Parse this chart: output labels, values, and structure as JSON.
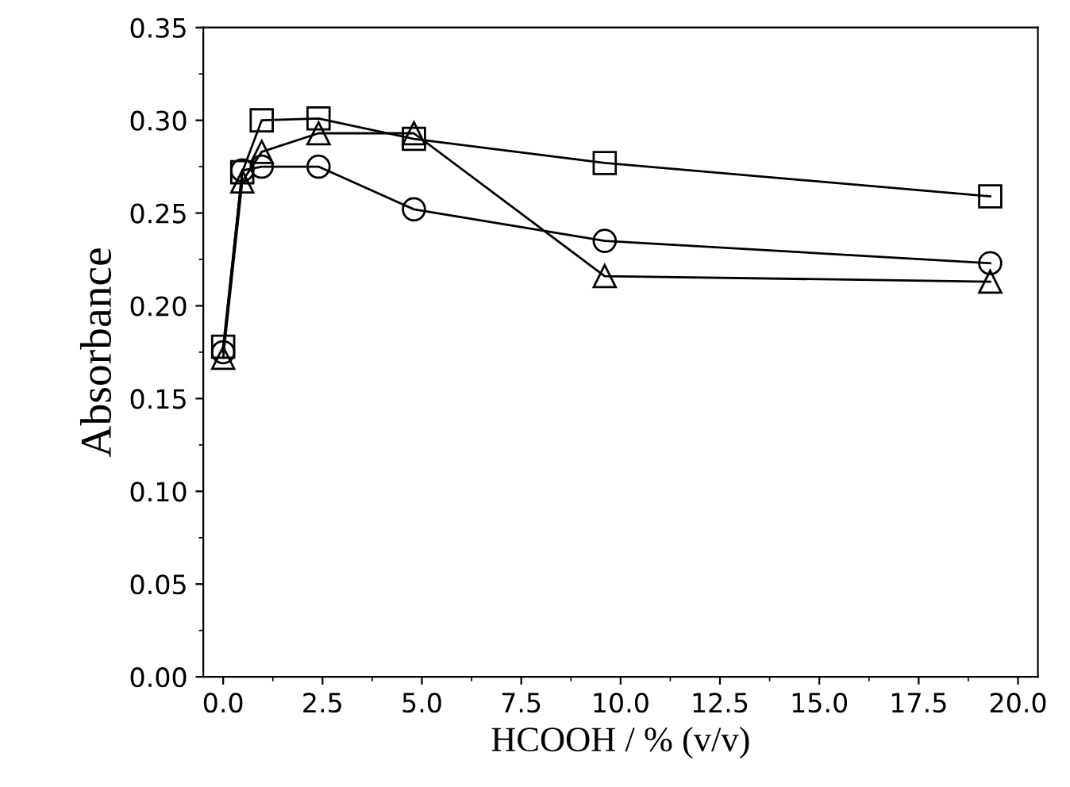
{
  "chart_data": {
    "type": "line",
    "xlabel": "HCOOH / % (v/v)",
    "ylabel": "Absorbance",
    "xlim": [
      -0.5,
      20.5
    ],
    "ylim": [
      0,
      0.35
    ],
    "xticks": [
      {
        "value": 0,
        "label": "0.0"
      },
      {
        "value": 2.5,
        "label": "2.5"
      },
      {
        "value": 5,
        "label": "5.0"
      },
      {
        "value": 7.5,
        "label": "7.5"
      },
      {
        "value": 10,
        "label": "10.0"
      },
      {
        "value": 12.5,
        "label": "12.5"
      },
      {
        "value": 15,
        "label": "15.0"
      },
      {
        "value": 17.5,
        "label": "17.5"
      },
      {
        "value": 20,
        "label": "20.0"
      }
    ],
    "yticks": [
      {
        "value": 0,
        "label": "0.00"
      },
      {
        "value": 0.05,
        "label": "0.05"
      },
      {
        "value": 0.1,
        "label": "0.10"
      },
      {
        "value": 0.15,
        "label": "0.15"
      },
      {
        "value": 0.2,
        "label": "0.20"
      },
      {
        "value": 0.25,
        "label": "0.25"
      },
      {
        "value": 0.3,
        "label": "0.30"
      },
      {
        "value": 0.35,
        "label": "0.35"
      }
    ],
    "x": [
      0,
      0.48,
      0.97,
      2.4,
      4.8,
      9.6,
      19.3
    ],
    "series": [
      {
        "color": "#000000",
        "marker": "square",
        "values": [
          0.178,
          0.272,
          0.3,
          0.301,
          0.29,
          0.277,
          0.259
        ]
      },
      {
        "color": "#000000",
        "marker": "circle",
        "values": [
          0.175,
          0.273,
          0.275,
          0.275,
          0.252,
          0.235,
          0.223
        ]
      },
      {
        "color": "#000000",
        "marker": "triangle",
        "values": [
          0.172,
          0.267,
          0.283,
          0.293,
          0.293,
          0.216,
          0.213
        ]
      }
    ],
    "grid": false
  }
}
